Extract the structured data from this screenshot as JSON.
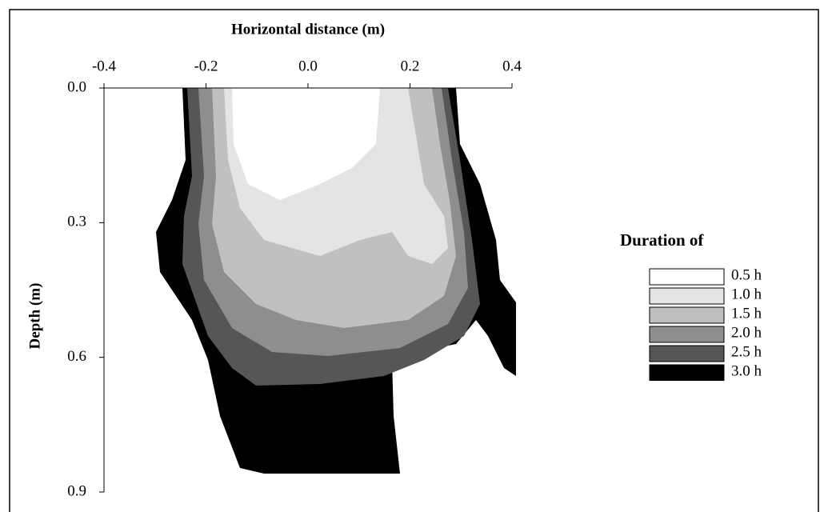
{
  "chart_data": {
    "type": "contour",
    "x_label": "Horizontal distance (m)",
    "y_label": "Depth (m)",
    "xlim": [
      -0.4,
      0.4
    ],
    "xticks": [
      -0.4,
      -0.2,
      {
        "value": 0,
        "label": "0.0"
      },
      0.2,
      0.4
    ],
    "ylim": [
      0,
      0.9
    ],
    "yticks": [
      {
        "value": 0,
        "label": "0.0"
      },
      0.3,
      0.6,
      0.9
    ],
    "y_inverted": true,
    "legend_title": "Duration of",
    "series": [
      {
        "name": "0.5 h",
        "color": "#ffffff"
      },
      {
        "name": "1.0 h",
        "color": "#e4e4e4"
      },
      {
        "name": "1.5 h",
        "color": "#c0c0c0"
      },
      {
        "name": "2.0 h",
        "color": "#8e8e8e"
      },
      {
        "name": "2.5 h",
        "color": "#565656"
      },
      {
        "name": "3.0 h",
        "color": "#000000"
      }
    ]
  }
}
